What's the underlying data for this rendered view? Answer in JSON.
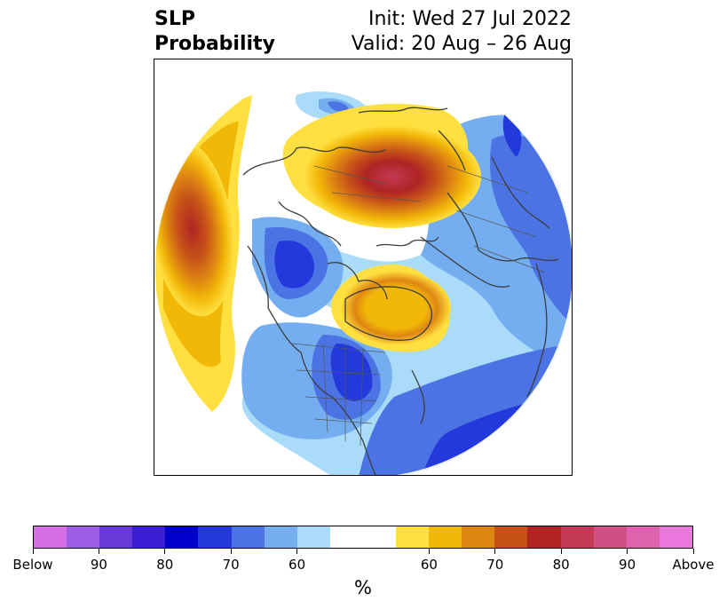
{
  "title": {
    "left_line1": "SLP",
    "left_line2": "Probability",
    "right_line1": "Init: Wed 27 Jul 2022",
    "right_line2": "Valid: 20 Aug – 26 Aug"
  },
  "map": {
    "projection": "north-polar-stereographic",
    "legend_placement": "below",
    "anomaly_regions": [
      {
        "name": "north-pacific-high",
        "category": "above",
        "peak_percent": 80
      },
      {
        "name": "siberia-high",
        "category": "above",
        "peak_percent": 85
      },
      {
        "name": "greenland-high",
        "category": "above",
        "peak_percent": 65
      },
      {
        "name": "arctic-canada-low",
        "category": "below",
        "peak_percent": 75
      },
      {
        "name": "hudson-bay-low",
        "category": "below",
        "peak_percent": 75
      },
      {
        "name": "north-atlantic-low",
        "category": "below",
        "peak_percent": 75
      },
      {
        "name": "scandinavia-low",
        "category": "below",
        "peak_percent": 70
      }
    ]
  },
  "colorbar": {
    "colors": [
      "#d56fe6",
      "#9c5ce3",
      "#6a3ad8",
      "#3a1ed4",
      "#0000cd",
      "#2339dc",
      "#4b73e4",
      "#75aef0",
      "#aadcfa",
      "#ffffff",
      "#ffffff",
      "#ffe040",
      "#f2b808",
      "#de8612",
      "#c65218",
      "#b02424",
      "#c23a54",
      "#d05086",
      "#de62ae",
      "#ea77dc"
    ],
    "ticks": [
      "Below",
      "90",
      "80",
      "70",
      "60",
      "60",
      "70",
      "80",
      "90",
      "Above"
    ],
    "units": "%"
  }
}
